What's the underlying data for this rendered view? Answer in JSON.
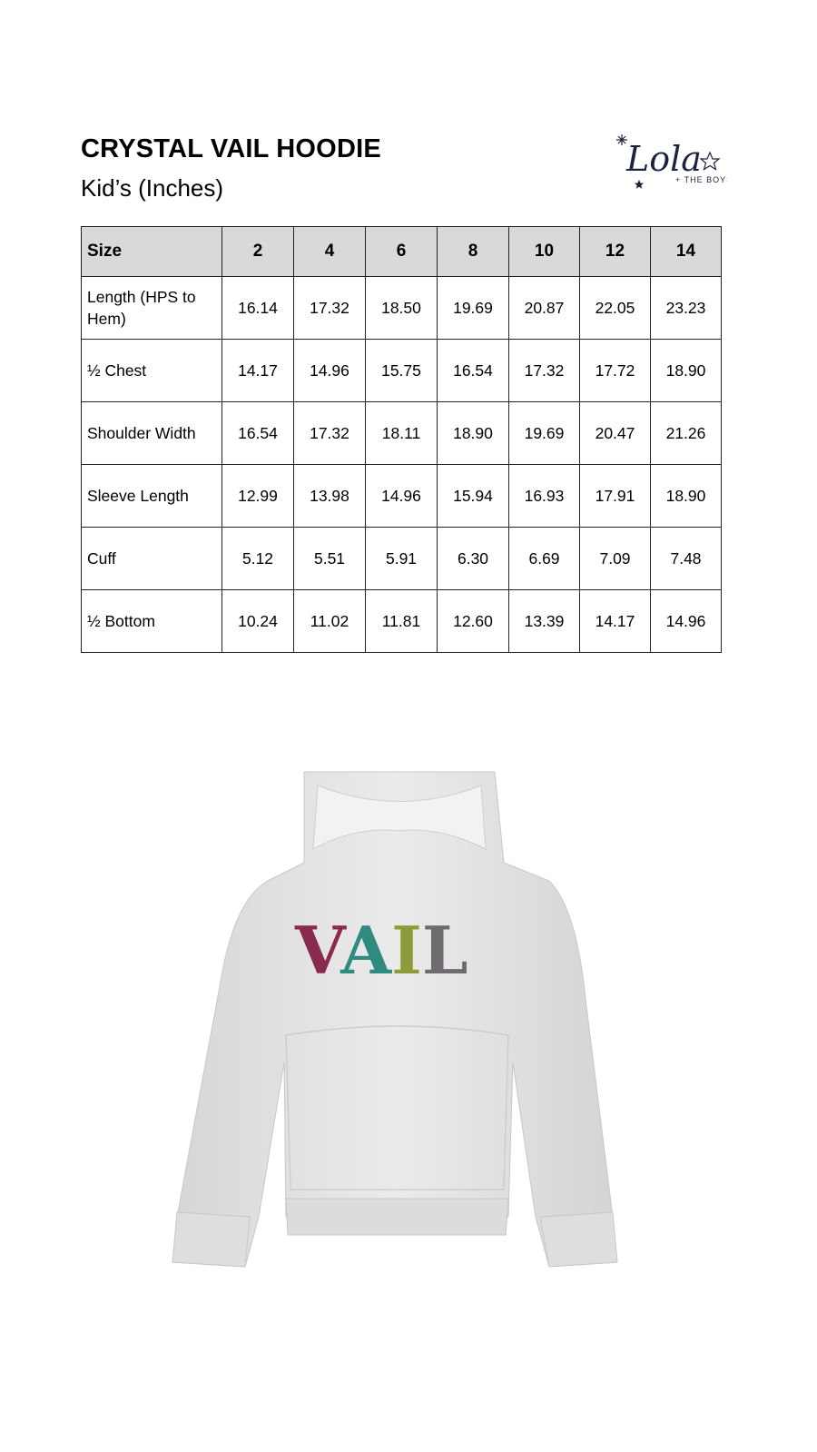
{
  "header": {
    "title": "CRYSTAL VAIL HOODIE",
    "subtitle": "Kid’s (Inches)"
  },
  "logo": {
    "text": "Lola",
    "tagline": "+ THE BOYS",
    "color": "#1c2340"
  },
  "size_table": {
    "columns": [
      "Size",
      "2",
      "4",
      "6",
      "8",
      "10",
      "12",
      "14"
    ],
    "rows": [
      {
        "label": "Length (HPS to Hem)",
        "values": [
          "16.14",
          "17.32",
          "18.50",
          "19.69",
          "20.87",
          "22.05",
          "23.23"
        ]
      },
      {
        "label": "½ Chest",
        "values": [
          "14.17",
          "14.96",
          "15.75",
          "16.54",
          "17.32",
          "17.72",
          "18.90"
        ]
      },
      {
        "label": "Shoulder Width",
        "values": [
          "16.54",
          "17.32",
          "18.11",
          "18.90",
          "19.69",
          "20.47",
          "21.26"
        ]
      },
      {
        "label": "Sleeve Length",
        "values": [
          "12.99",
          "13.98",
          "14.96",
          "15.94",
          "16.93",
          "17.91",
          "18.90"
        ]
      },
      {
        "label": "Cuff",
        "values": [
          "5.12",
          "5.51",
          "5.91",
          "6.30",
          "6.69",
          "7.09",
          "7.48"
        ]
      },
      {
        "label": "½ Bottom",
        "values": [
          "10.24",
          "11.02",
          "11.81",
          "12.60",
          "13.39",
          "14.17",
          "14.96"
        ]
      }
    ],
    "header_bg": "#d9d9d9"
  },
  "product_image": {
    "graphic_text": "VAIL",
    "letter_colors": [
      "#8a2a4e",
      "#2f8a80",
      "#8f9a3a",
      "#6f6a70"
    ],
    "hoodie_color": "#e4e4e4"
  }
}
